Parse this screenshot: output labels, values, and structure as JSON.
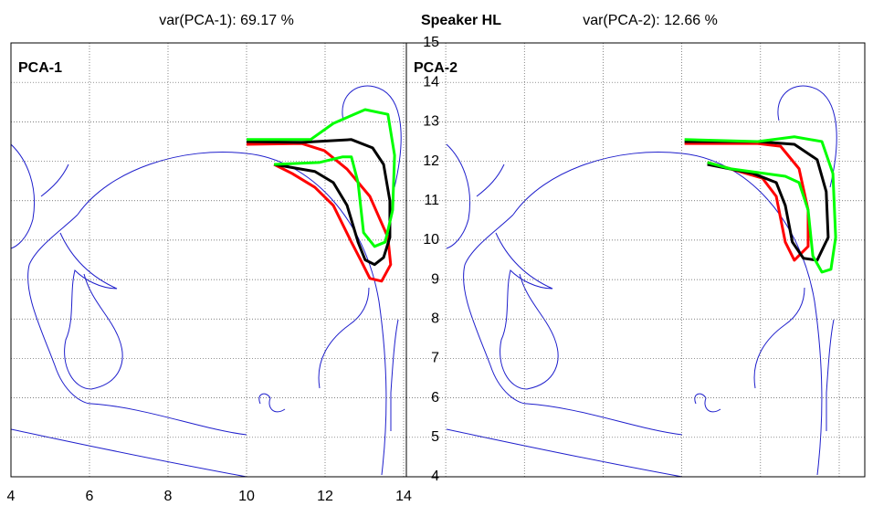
{
  "title": "Speaker HL",
  "chart_data": [
    {
      "type": "line",
      "title": "var(PCA-1): 69.17 %",
      "label": "PCA-1",
      "xlim": [
        4,
        14.07
      ],
      "ylim": [
        4,
        15
      ],
      "xticks": [
        4,
        6,
        8,
        10,
        12,
        14
      ],
      "yticks": [
        4,
        5,
        6,
        7,
        8,
        9,
        10,
        11,
        12,
        13,
        14,
        15
      ],
      "xtick_labels": true,
      "ytick_labels": true,
      "yaxis": "right",
      "grid": true,
      "series": [
        {
          "color": "#ff0000",
          "x": [
            10.0,
            11.4,
            11.98,
            12.56,
            13.14,
            13.6,
            13.67,
            13.44,
            13.14,
            12.91,
            12.67,
            12.21,
            11.74,
            11.16,
            10.7
          ],
          "values": [
            12.43,
            12.45,
            12.27,
            11.8,
            11.11,
            10.07,
            9.38,
            8.96,
            9.03,
            9.49,
            9.95,
            10.88,
            11.34,
            11.69,
            11.92
          ]
        },
        {
          "color": "#000000",
          "x": [
            10.0,
            11.4,
            12.67,
            13.21,
            13.49,
            13.65,
            13.65,
            13.49,
            13.26,
            13.02,
            12.84,
            12.56,
            12.21,
            11.74,
            10.7
          ],
          "values": [
            12.5,
            12.48,
            12.55,
            12.34,
            11.92,
            11.0,
            10.07,
            9.56,
            9.38,
            9.5,
            9.95,
            10.88,
            11.46,
            11.74,
            11.92
          ]
        },
        {
          "color": "#00ff00",
          "x": [
            10.0,
            11.63,
            12.21,
            13.02,
            13.6,
            13.77,
            13.72,
            13.53,
            13.26,
            12.98,
            12.84,
            12.67,
            12.44,
            11.86,
            10.7
          ],
          "values": [
            12.55,
            12.55,
            12.96,
            13.31,
            13.19,
            12.15,
            10.76,
            9.95,
            9.84,
            10.19,
            11.46,
            12.11,
            12.11,
            11.97,
            11.92
          ]
        }
      ]
    },
    {
      "type": "line",
      "title": "var(PCA-2): 12.66 %",
      "label": "PCA-2",
      "xlim": [
        3,
        14.65
      ],
      "ylim": [
        4,
        15
      ],
      "xticks": [
        4,
        6,
        8,
        10,
        12,
        14
      ],
      "yticks": [
        4,
        5,
        6,
        7,
        8,
        9,
        10,
        11,
        12,
        13,
        14,
        15
      ],
      "xtick_labels": false,
      "ytick_labels": false,
      "yaxis": "left",
      "grid": true,
      "series": [
        {
          "color": "#ff0000",
          "x": [
            10.07,
            11.93,
            12.51,
            12.98,
            13.21,
            13.21,
            12.86,
            12.63,
            12.4,
            12.05,
            11.23,
            10.65
          ],
          "values": [
            12.45,
            12.45,
            12.38,
            11.81,
            10.76,
            9.84,
            9.49,
            9.95,
            11.11,
            11.57,
            11.81,
            11.97
          ]
        },
        {
          "color": "#000000",
          "x": [
            10.07,
            11.93,
            12.86,
            13.44,
            13.67,
            13.72,
            13.44,
            13.09,
            12.81,
            12.63,
            12.4,
            11.81,
            10.65
          ],
          "values": [
            12.5,
            12.5,
            12.43,
            12.04,
            11.23,
            10.07,
            9.49,
            9.54,
            9.95,
            10.88,
            11.46,
            11.69,
            11.92
          ]
        },
        {
          "color": "#00ff00",
          "x": [
            10.07,
            11.93,
            12.86,
            13.56,
            13.84,
            13.91,
            13.79,
            13.56,
            13.33,
            13.21,
            12.98,
            12.63,
            11.23,
            10.65
          ],
          "values": [
            12.55,
            12.5,
            12.62,
            12.5,
            11.69,
            10.07,
            9.26,
            9.19,
            9.6,
            10.76,
            11.46,
            11.62,
            11.81,
            11.97
          ]
        }
      ]
    }
  ]
}
